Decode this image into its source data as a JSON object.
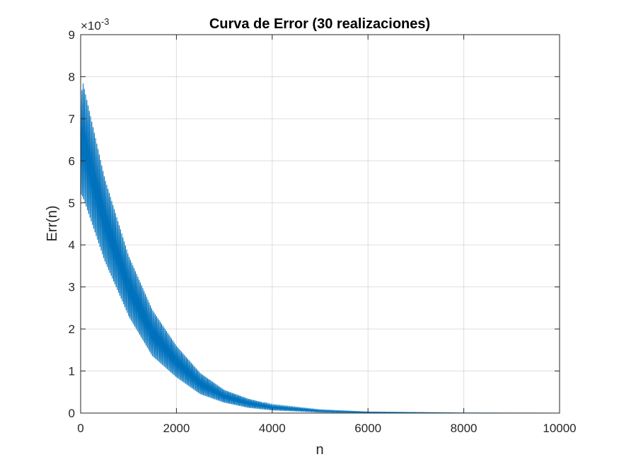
{
  "chart_data": {
    "type": "line",
    "title": "Curva de Error (30 realizaciones)",
    "xlabel": "n",
    "ylabel": "Err(n)",
    "y_exponent_label": "×10",
    "y_exponent_value": "-3",
    "xlim": [
      0,
      10000
    ],
    "ylim": [
      0,
      9
    ],
    "x_ticks": [
      "0",
      "2000",
      "4000",
      "6000",
      "8000",
      "10000"
    ],
    "y_ticks": [
      "0",
      "1",
      "2",
      "3",
      "4",
      "5",
      "6",
      "7",
      "8",
      "9"
    ],
    "grid": true,
    "series": [
      {
        "color": "#0072BD",
        "line_width": 1,
        "x_start": 0,
        "x_end": 10000,
        "n_points": 10000,
        "oscillation_period_samples": 26,
        "envelope_upper": {
          "x": [
            0,
            50,
            500,
            1000,
            1500,
            2000,
            2500,
            3000,
            3500,
            4000,
            5000,
            6000,
            8000,
            10000
          ],
          "y": [
            7.5,
            7.85,
            5.6,
            3.75,
            2.45,
            1.6,
            0.95,
            0.55,
            0.34,
            0.2,
            0.08,
            0.03,
            0.005,
            0.001
          ]
        },
        "envelope_lower": {
          "x": [
            0,
            50,
            500,
            1000,
            1500,
            2000,
            2500,
            3000,
            3500,
            4000,
            5000,
            6000,
            8000,
            10000
          ],
          "y": [
            5.2,
            5.1,
            3.6,
            2.3,
            1.35,
            0.85,
            0.45,
            0.25,
            0.13,
            0.07,
            0.02,
            0.005,
            0.001,
            0.0
          ]
        }
      }
    ]
  }
}
